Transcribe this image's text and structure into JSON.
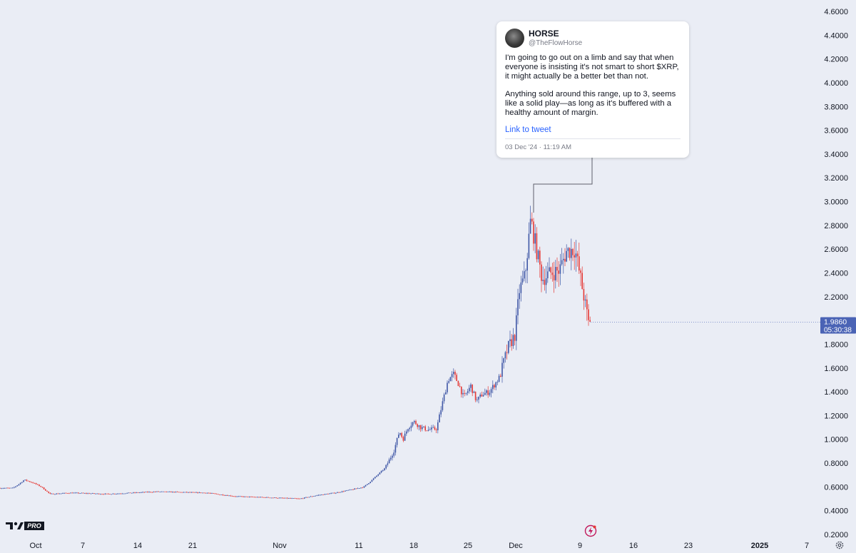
{
  "chart_data": {
    "type": "candlestick",
    "ylim": [
      0.2,
      4.6
    ],
    "yticks": [
      "4.6000",
      "4.4000",
      "4.2000",
      "4.0000",
      "3.8000",
      "3.6000",
      "3.4000",
      "3.2000",
      "3.0000",
      "2.8000",
      "2.6000",
      "2.4000",
      "2.2000",
      "2.0000",
      "1.8000",
      "1.6000",
      "1.4000",
      "1.2000",
      "1.0000",
      "0.8000",
      "0.6000",
      "0.4000",
      "0.2000"
    ],
    "xticks": [
      "Oct",
      "7",
      "14",
      "21",
      "Nov",
      "11",
      "18",
      "25",
      "Dec",
      "9",
      "16",
      "23",
      "2025",
      "7"
    ],
    "price_label": "1.9860",
    "countdown_label": "05:30:38",
    "colors": {
      "up": "#3f57a6",
      "down": "#e53935",
      "bg": "#eaedf5",
      "price_tag": "#4a63b5"
    },
    "path": [
      [
        0,
        0.59
      ],
      [
        18,
        0.59
      ],
      [
        28,
        0.63
      ],
      [
        34,
        0.66
      ],
      [
        48,
        0.63
      ],
      [
        58,
        0.6
      ],
      [
        70,
        0.54
      ],
      [
        100,
        0.55
      ],
      [
        150,
        0.54
      ],
      [
        220,
        0.56
      ],
      [
        290,
        0.55
      ],
      [
        330,
        0.52
      ],
      [
        380,
        0.51
      ],
      [
        420,
        0.5
      ],
      [
        445,
        0.53
      ],
      [
        470,
        0.55
      ],
      [
        495,
        0.58
      ],
      [
        510,
        0.6
      ],
      [
        520,
        0.65
      ],
      [
        540,
        0.76
      ],
      [
        552,
        0.9
      ],
      [
        560,
        1.07
      ],
      [
        565,
        1.0
      ],
      [
        572,
        1.1
      ],
      [
        580,
        1.15
      ],
      [
        590,
        1.1
      ],
      [
        600,
        1.08
      ],
      [
        612,
        1.09
      ],
      [
        620,
        1.3
      ],
      [
        628,
        1.5
      ],
      [
        636,
        1.55
      ],
      [
        644,
        1.45
      ],
      [
        650,
        1.35
      ],
      [
        660,
        1.45
      ],
      [
        668,
        1.32
      ],
      [
        676,
        1.38
      ],
      [
        686,
        1.4
      ],
      [
        700,
        1.52
      ],
      [
        712,
        1.77
      ],
      [
        722,
        1.88
      ],
      [
        728,
        2.25
      ],
      [
        736,
        2.38
      ],
      [
        744,
        2.85
      ],
      [
        752,
        2.6
      ],
      [
        760,
        2.35
      ],
      [
        772,
        2.4
      ],
      [
        784,
        2.42
      ],
      [
        794,
        2.58
      ],
      [
        806,
        2.6
      ],
      [
        814,
        2.35
      ],
      [
        820,
        2.15
      ],
      [
        826,
        1.95
      ],
      [
        828,
        1.99
      ]
    ],
    "annotation": {
      "author": "HORSE",
      "handle": "@TheFlowHorse",
      "paragraph_1": "I'm going to go out on a limb and say that when everyone is insisting it's not smart to short $XRP, it might actually be a better bet than not.",
      "paragraph_2": "Anything sold around this range, up to 3, seems like a solid play—as long as it's buffered with a healthy amount of margin.",
      "link_text": "Link to tweet",
      "timestamp": "03 Dec '24 · 11:19 AM"
    }
  },
  "branding": {
    "pro_label": "PRO"
  }
}
